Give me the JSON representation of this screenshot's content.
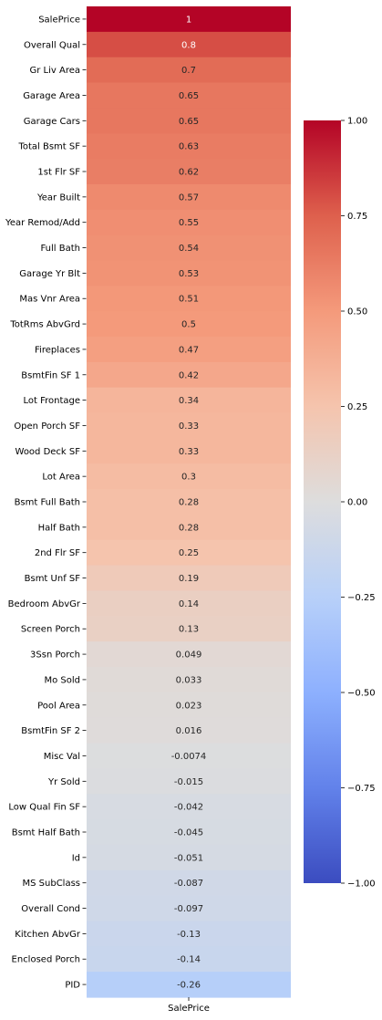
{
  "chart_data": {
    "type": "heatmap",
    "title": "",
    "xlabel": "",
    "ylabel": "",
    "colormap": "coolwarm",
    "vmin": -1.0,
    "vmax": 1.0,
    "x_categories": [
      "SalePrice"
    ],
    "y_categories": [
      "SalePrice",
      "Overall Qual",
      "Gr Liv Area",
      "Garage Area",
      "Garage Cars",
      "Total Bsmt SF",
      "1st Flr SF",
      "Year Built",
      "Year Remod/Add",
      "Full Bath",
      "Garage Yr Blt",
      "Mas Vnr Area",
      "TotRms AbvGrd",
      "Fireplaces",
      "BsmtFin SF 1",
      "Lot Frontage",
      "Open Porch SF",
      "Wood Deck SF",
      "Lot Area",
      "Bsmt Full Bath",
      "Half Bath",
      "2nd Flr SF",
      "Bsmt Unf SF",
      "Bedroom AbvGr",
      "Screen Porch",
      "3Ssn Porch",
      "Mo Sold",
      "Pool Area",
      "BsmtFin SF 2",
      "Misc Val",
      "Yr Sold",
      "Low Qual Fin SF",
      "Bsmt Half Bath",
      "Id",
      "MS SubClass",
      "Overall Cond",
      "Kitchen AbvGr",
      "Enclosed Porch",
      "PID"
    ],
    "values": [
      1,
      0.8,
      0.7,
      0.65,
      0.65,
      0.63,
      0.62,
      0.57,
      0.55,
      0.54,
      0.53,
      0.51,
      0.5,
      0.47,
      0.42,
      0.34,
      0.33,
      0.33,
      0.3,
      0.28,
      0.28,
      0.25,
      0.19,
      0.14,
      0.13,
      0.049,
      0.033,
      0.023,
      0.016,
      -0.0074,
      -0.015,
      -0.042,
      -0.045,
      -0.051,
      -0.087,
      -0.097,
      -0.13,
      -0.14,
      -0.26
    ],
    "value_labels": [
      "1",
      "0.8",
      "0.7",
      "0.65",
      "0.65",
      "0.63",
      "0.62",
      "0.57",
      "0.55",
      "0.54",
      "0.53",
      "0.51",
      "0.5",
      "0.47",
      "0.42",
      "0.34",
      "0.33",
      "0.33",
      "0.3",
      "0.28",
      "0.28",
      "0.25",
      "0.19",
      "0.14",
      "0.13",
      "0.049",
      "0.033",
      "0.023",
      "0.016",
      "-0.0074",
      "-0.015",
      "-0.042",
      "-0.045",
      "-0.051",
      "-0.087",
      "-0.097",
      "-0.13",
      "-0.14",
      "-0.26"
    ],
    "colorbar": {
      "ticks": [
        1.0,
        0.75,
        0.5,
        0.25,
        0.0,
        -0.25,
        -0.5,
        -0.75,
        -1.0
      ],
      "tick_labels": [
        "1.00",
        "0.75",
        "0.50",
        "0.25",
        "0.00",
        "−0.25",
        "−0.50",
        "−0.75",
        "−1.00"
      ]
    }
  }
}
